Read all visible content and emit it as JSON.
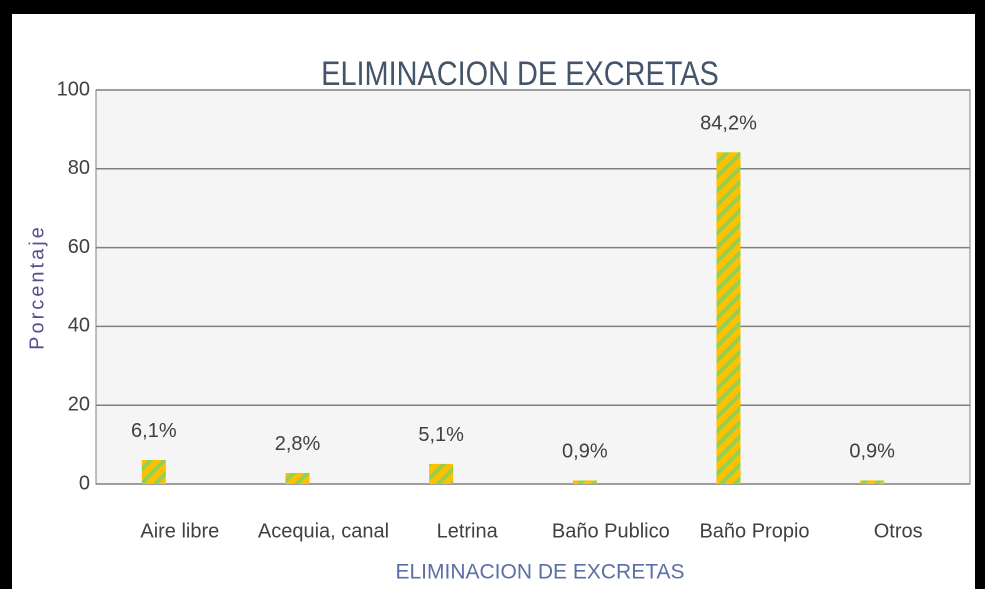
{
  "chart_data": {
    "type": "bar",
    "title": "ELIMINACION DE EXCRETAS",
    "x_label": "ELIMINACION DE EXCRETAS",
    "y_label": "Porcentaje",
    "categories": [
      "Aire libre",
      "Acequia, canal",
      "Letrina",
      "Baño Publico",
      "Baño Propio",
      "Otros"
    ],
    "values": [
      6.1,
      2.8,
      5.1,
      0.9,
      84.2,
      0.9
    ],
    "value_labels": [
      "6,1%",
      "2,8%",
      "5,1%",
      "0,9%",
      "84,2%",
      "0,9%"
    ],
    "color": "#FFC000",
    "stripe_color": "#92D050",
    "ylim": [
      0,
      100
    ],
    "yticks": [
      0,
      20,
      40,
      60,
      80,
      100
    ],
    "grid": true
  }
}
